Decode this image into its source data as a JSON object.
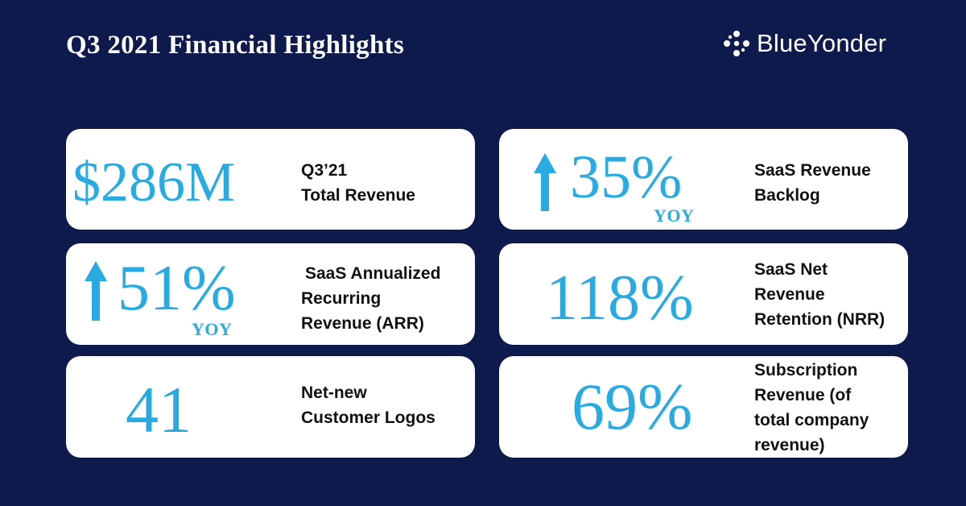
{
  "header": {
    "title": "Q3 2021 Financial Highlights",
    "logo_text": "BlueYonder",
    "logo_icon": "sparkle-cross-icon"
  },
  "colors": {
    "background": "#0d1a4b",
    "accent": "#29abe2",
    "card": "#ffffff",
    "label_text": "#111111"
  },
  "metrics": {
    "total_revenue": {
      "value": "$286M",
      "label_lines": [
        "Q3’21",
        "Total Revenue"
      ]
    },
    "saas_backlog": {
      "value": "35%",
      "trend": "YOY",
      "trend_icon": "up-arrow-icon",
      "label_lines": [
        "SaaS Revenue",
        "Backlog"
      ]
    },
    "saas_arr": {
      "value": "51%",
      "trend": "YOY",
      "trend_icon": "up-arrow-icon",
      "label_lines": [
        "SaaS Annualized",
        "Recurring",
        "Revenue (ARR)"
      ]
    },
    "saas_nrr": {
      "value": "118%",
      "label_lines": [
        "SaaS Net",
        "Revenue",
        "Retention (NRR)"
      ]
    },
    "new_logos": {
      "value": "41",
      "label_lines": [
        "Net-new",
        "Customer Logos"
      ]
    },
    "subscription": {
      "value": "69%",
      "label_lines": [
        "Subscription",
        "Revenue (of",
        "total company",
        "revenue)"
      ]
    }
  }
}
